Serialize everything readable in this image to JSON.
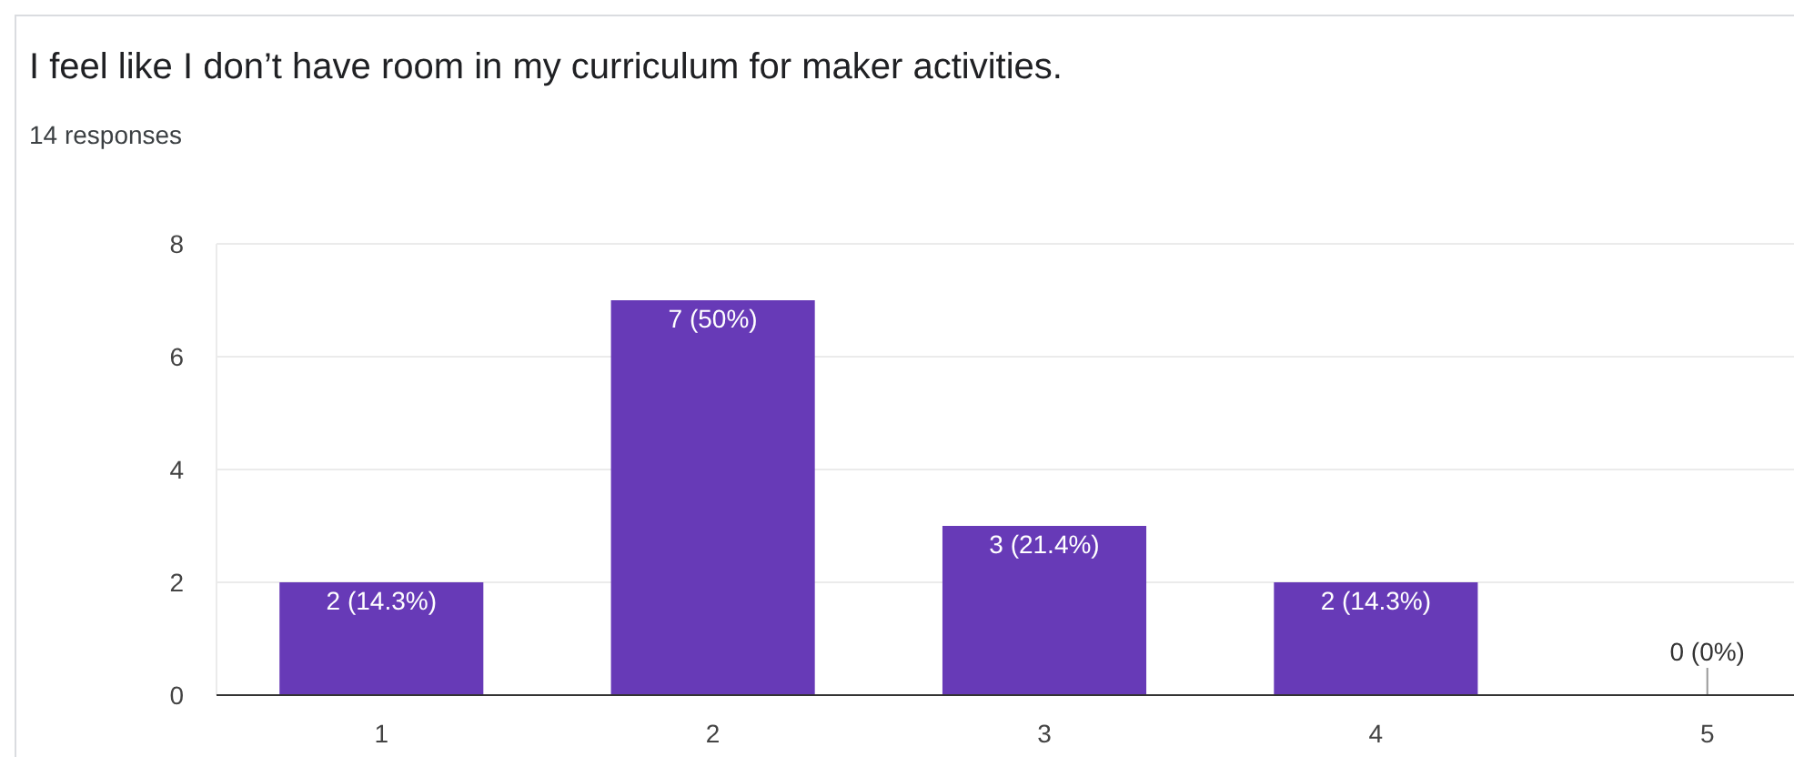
{
  "chart_data": {
    "type": "bar",
    "title": "I feel like I don’t have room in my curriculum for maker activities.",
    "subtitle": "14 responses",
    "categories": [
      "1",
      "2",
      "3",
      "4",
      "5"
    ],
    "values": [
      2,
      7,
      3,
      2,
      0
    ],
    "value_labels": [
      "2 (14.3%)",
      "7 (50%)",
      "3 (21.4%)",
      "2 (14.3%)",
      "0 (0%)"
    ],
    "color": "#673ab7",
    "ylim": [
      0,
      8
    ],
    "yticks": [
      0,
      2,
      4,
      6,
      8
    ],
    "grid": "y"
  }
}
